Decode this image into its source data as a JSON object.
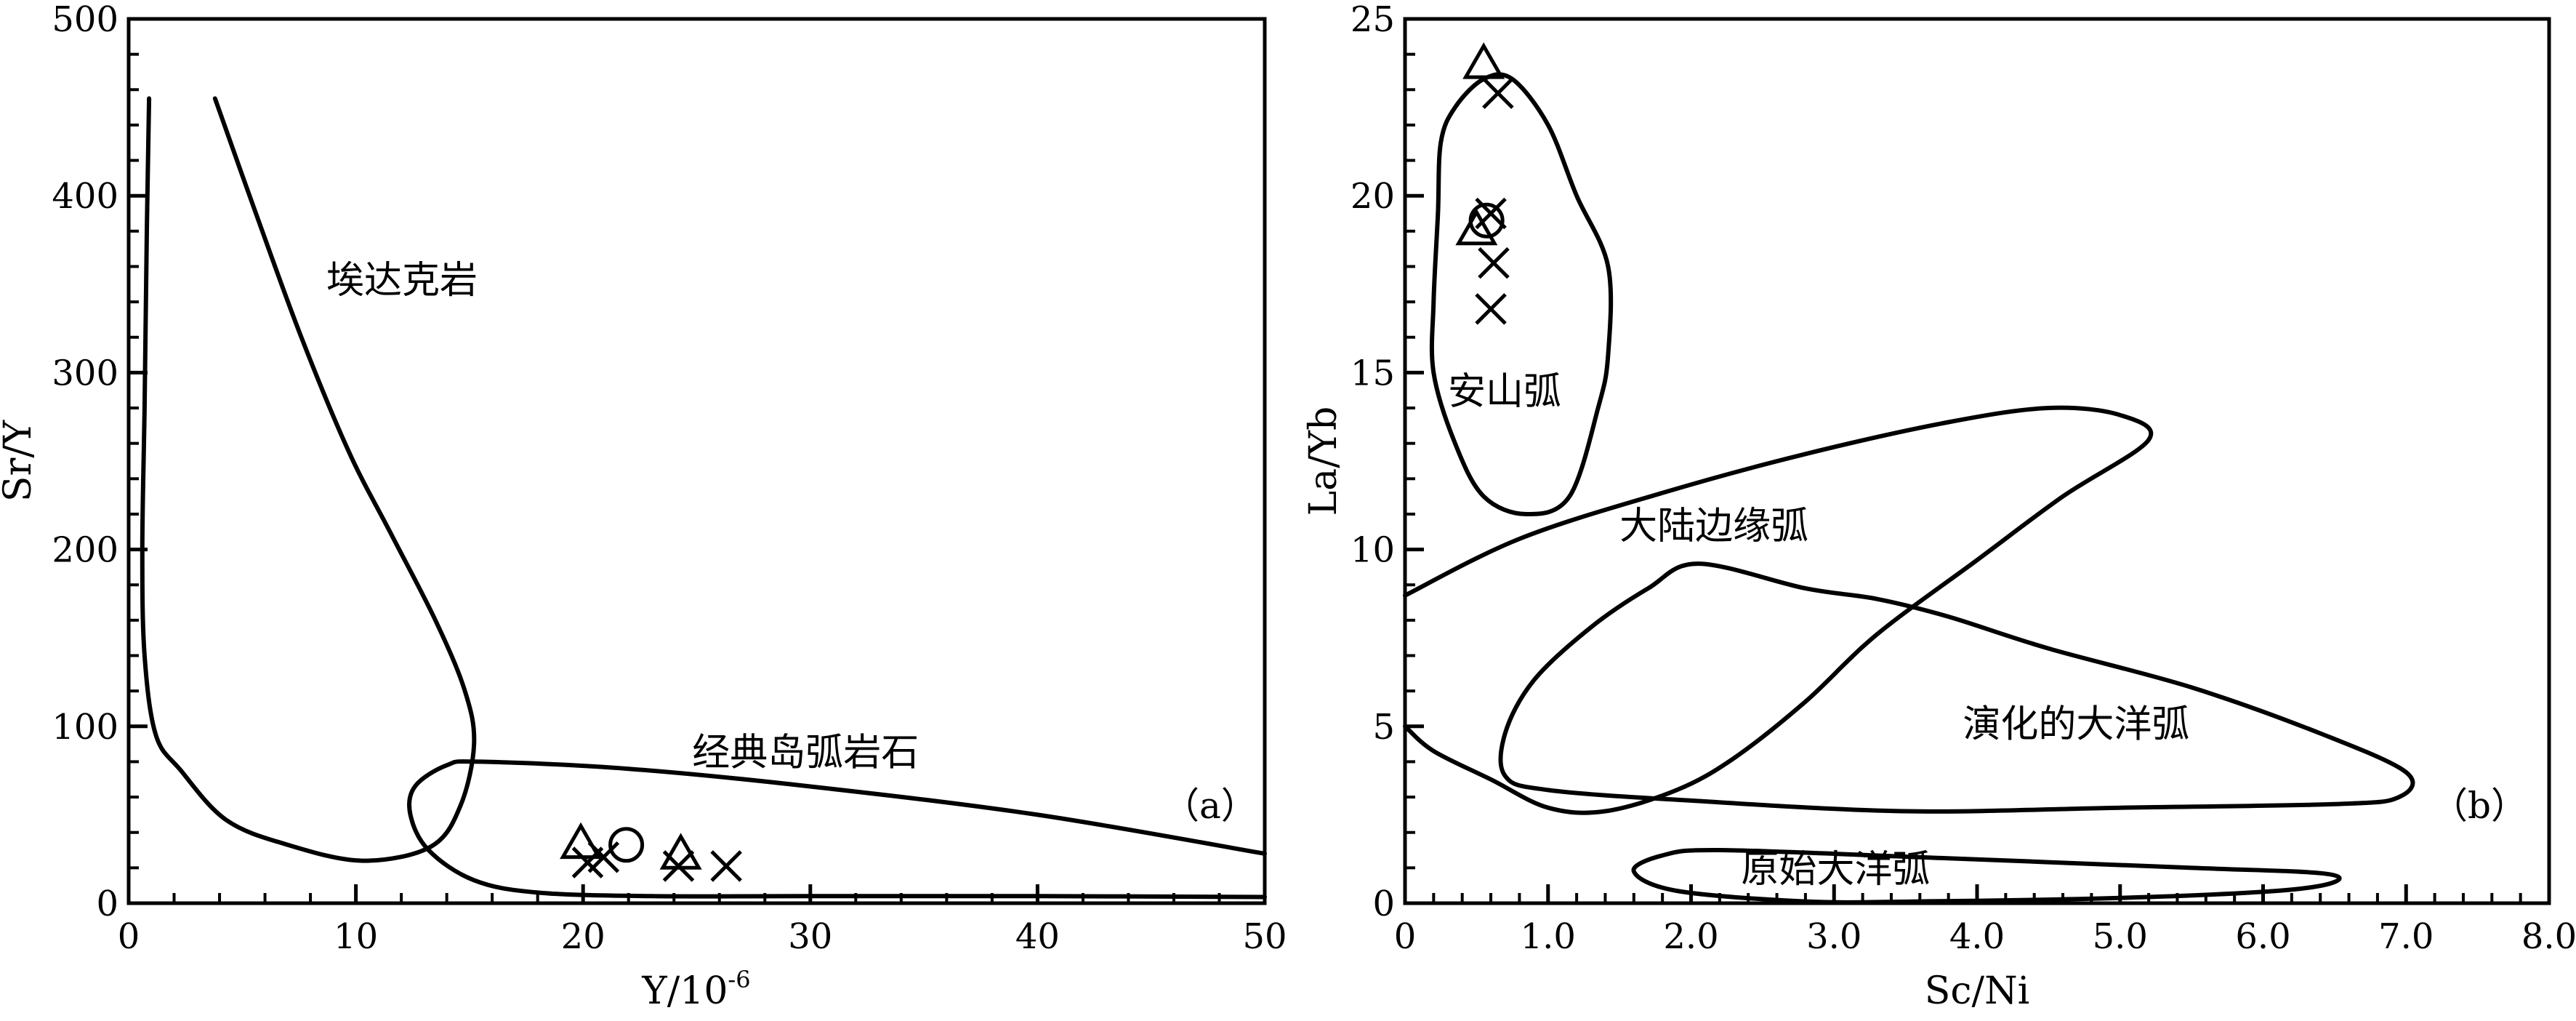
{
  "chart_data": [
    {
      "type": "scatter",
      "panel_label": "（a）",
      "xlabel": "Y/10",
      "xlabel_sup": "-6",
      "ylabel": "Sr/Y",
      "xlim": [
        0,
        50
      ],
      "ylim": [
        0,
        500
      ],
      "x_ticks": [
        "0",
        "10",
        "20",
        "30",
        "40",
        "50"
      ],
      "y_ticks": [
        "0",
        "100",
        "200",
        "300",
        "400",
        "500"
      ],
      "x_tick_values": [
        0,
        10,
        20,
        30,
        40,
        50
      ],
      "y_tick_values": [
        0,
        100,
        200,
        300,
        400,
        500
      ],
      "fields": [
        {
          "label": "埃达克岩",
          "label_at": [
            8.7,
            345
          ],
          "closed": false,
          "path": [
            [
              0.9,
              455
            ],
            [
              0.8,
              380
            ],
            [
              0.7,
              280
            ],
            [
              0.6,
              200
            ],
            [
              0.7,
              140
            ],
            [
              1.2,
              95
            ],
            [
              2.3,
              75
            ],
            [
              4.3,
              47
            ],
            [
              7,
              33
            ],
            [
              10.3,
              24
            ],
            [
              13.3,
              32
            ],
            [
              14.6,
              55
            ],
            [
              15.2,
              90
            ],
            [
              14.8,
              120
            ],
            [
              13.5,
              160
            ],
            [
              11.5,
              210
            ],
            [
              9.7,
              255
            ],
            [
              7.6,
              320
            ],
            [
              5.6,
              390
            ],
            [
              3.8,
              455
            ]
          ]
        },
        {
          "label": "经典岛弧岩石",
          "label_at": [
            24.8,
            78
          ],
          "closed": false,
          "path": [
            [
              50,
              28
            ],
            [
              40,
              50
            ],
            [
              30,
              66
            ],
            [
              22,
              76
            ],
            [
              15.5,
              80
            ],
            [
              14,
              78
            ],
            [
              12.6,
              66
            ],
            [
              12.4,
              50
            ],
            [
              13.2,
              30
            ],
            [
              15.2,
              13
            ],
            [
              18,
              6
            ],
            [
              23,
              4
            ],
            [
              30,
              4
            ],
            [
              40,
              4
            ],
            [
              50,
              3.5
            ]
          ]
        }
      ],
      "series": [
        {
          "marker": "triangle",
          "points": [
            [
              19.9,
              33
            ],
            [
              24.3,
              27
            ]
          ]
        },
        {
          "marker": "circle",
          "points": [
            [
              21.9,
              33
            ]
          ]
        },
        {
          "marker": "cross",
          "points": [
            [
              20.2,
              23
            ],
            [
              20.9,
              26
            ],
            [
              24.2,
              21
            ],
            [
              26.3,
              21
            ]
          ]
        }
      ]
    },
    {
      "type": "scatter",
      "panel_label": "（b）",
      "xlabel": "Sc/Ni",
      "ylabel": "La/Yb",
      "xlim": [
        0,
        8
      ],
      "ylim": [
        0,
        25
      ],
      "x_ticks": [
        "0",
        "1.0",
        "2.0",
        "3.0",
        "4.0",
        "5.0",
        "6.0",
        "7.0",
        "8.0"
      ],
      "y_ticks": [
        "0",
        "5",
        "10",
        "15",
        "20",
        "25"
      ],
      "x_tick_values": [
        0,
        1,
        2,
        3,
        4,
        5,
        6,
        7,
        8
      ],
      "y_tick_values": [
        0,
        5,
        10,
        15,
        20,
        25
      ],
      "fields": [
        {
          "label": "安山弧",
          "label_at": [
            0.3,
            14.1
          ],
          "closed": true,
          "path": [
            [
              0.75,
              23.3
            ],
            [
              1.0,
              22.0
            ],
            [
              1.2,
              20.0
            ],
            [
              1.42,
              18.0
            ],
            [
              1.42,
              15.5
            ],
            [
              1.35,
              14.0
            ],
            [
              1.15,
              11.5
            ],
            [
              0.85,
              11.0
            ],
            [
              0.55,
              11.5
            ],
            [
              0.35,
              13.0
            ],
            [
              0.2,
              15.0
            ],
            [
              0.2,
              17.0
            ],
            [
              0.23,
              19.5
            ],
            [
              0.25,
              21.5
            ],
            [
              0.35,
              22.5
            ],
            [
              0.55,
              23.3
            ]
          ]
        },
        {
          "label": "大陆边缘弧",
          "label_at": [
            1.5,
            10.3
          ],
          "closed": false,
          "path": [
            [
              0,
              8.7
            ],
            [
              0.8,
              10.3
            ],
            [
              1.8,
              11.6
            ],
            [
              2.8,
              12.7
            ],
            [
              3.8,
              13.6
            ],
            [
              4.5,
              14.0
            ],
            [
              5.0,
              13.8
            ],
            [
              5.2,
              13.1
            ],
            [
              4.6,
              11.5
            ],
            [
              4.0,
              9.7
            ],
            [
              3.3,
              7.6
            ],
            [
              2.8,
              5.7
            ],
            [
              2.3,
              4.1
            ],
            [
              1.9,
              3.2
            ],
            [
              1.4,
              2.6
            ],
            [
              1.0,
              2.7
            ],
            [
              0.6,
              3.5
            ],
            [
              0.2,
              4.3
            ],
            [
              0,
              5.0
            ]
          ]
        },
        {
          "label": "演化的大洋弧",
          "label_at": [
            3.9,
            4.7
          ],
          "closed": true,
          "path": [
            [
              2.05,
              9.6
            ],
            [
              2.8,
              8.9
            ],
            [
              3.3,
              8.6
            ],
            [
              3.8,
              8.1
            ],
            [
              4.5,
              7.2
            ],
            [
              5.5,
              6.1
            ],
            [
              6.4,
              4.8
            ],
            [
              7.0,
              3.7
            ],
            [
              6.95,
              3.0
            ],
            [
              6.5,
              2.8
            ],
            [
              5.0,
              2.7
            ],
            [
              3.5,
              2.6
            ],
            [
              2.0,
              2.9
            ],
            [
              1.0,
              3.2
            ],
            [
              0.7,
              3.6
            ],
            [
              0.7,
              4.8
            ],
            [
              0.9,
              6.3
            ],
            [
              1.3,
              7.8
            ],
            [
              1.7,
              8.9
            ]
          ]
        },
        {
          "label": "原始大洋弧",
          "label_at": [
            2.35,
            0.6
          ],
          "closed": true,
          "path": [
            [
              2.2,
              1.5
            ],
            [
              3.6,
              1.3
            ],
            [
              5.5,
              1.0
            ],
            [
              6.4,
              0.85
            ],
            [
              6.5,
              0.6
            ],
            [
              6.1,
              0.35
            ],
            [
              5.0,
              0.15
            ],
            [
              3.6,
              0.05
            ],
            [
              2.8,
              0.05
            ],
            [
              1.9,
              0.35
            ],
            [
              1.6,
              0.9
            ],
            [
              1.8,
              1.35
            ]
          ]
        }
      ],
      "series": [
        {
          "marker": "triangle",
          "points": [
            [
              0.55,
              23.7
            ],
            [
              0.5,
              19.0
            ]
          ]
        },
        {
          "marker": "circle",
          "points": [
            [
              0.57,
              19.3
            ]
          ]
        },
        {
          "marker": "cross",
          "points": [
            [
              0.65,
              22.9
            ],
            [
              0.6,
              19.5
            ],
            [
              0.62,
              18.1
            ],
            [
              0.6,
              16.8
            ]
          ]
        }
      ]
    }
  ]
}
